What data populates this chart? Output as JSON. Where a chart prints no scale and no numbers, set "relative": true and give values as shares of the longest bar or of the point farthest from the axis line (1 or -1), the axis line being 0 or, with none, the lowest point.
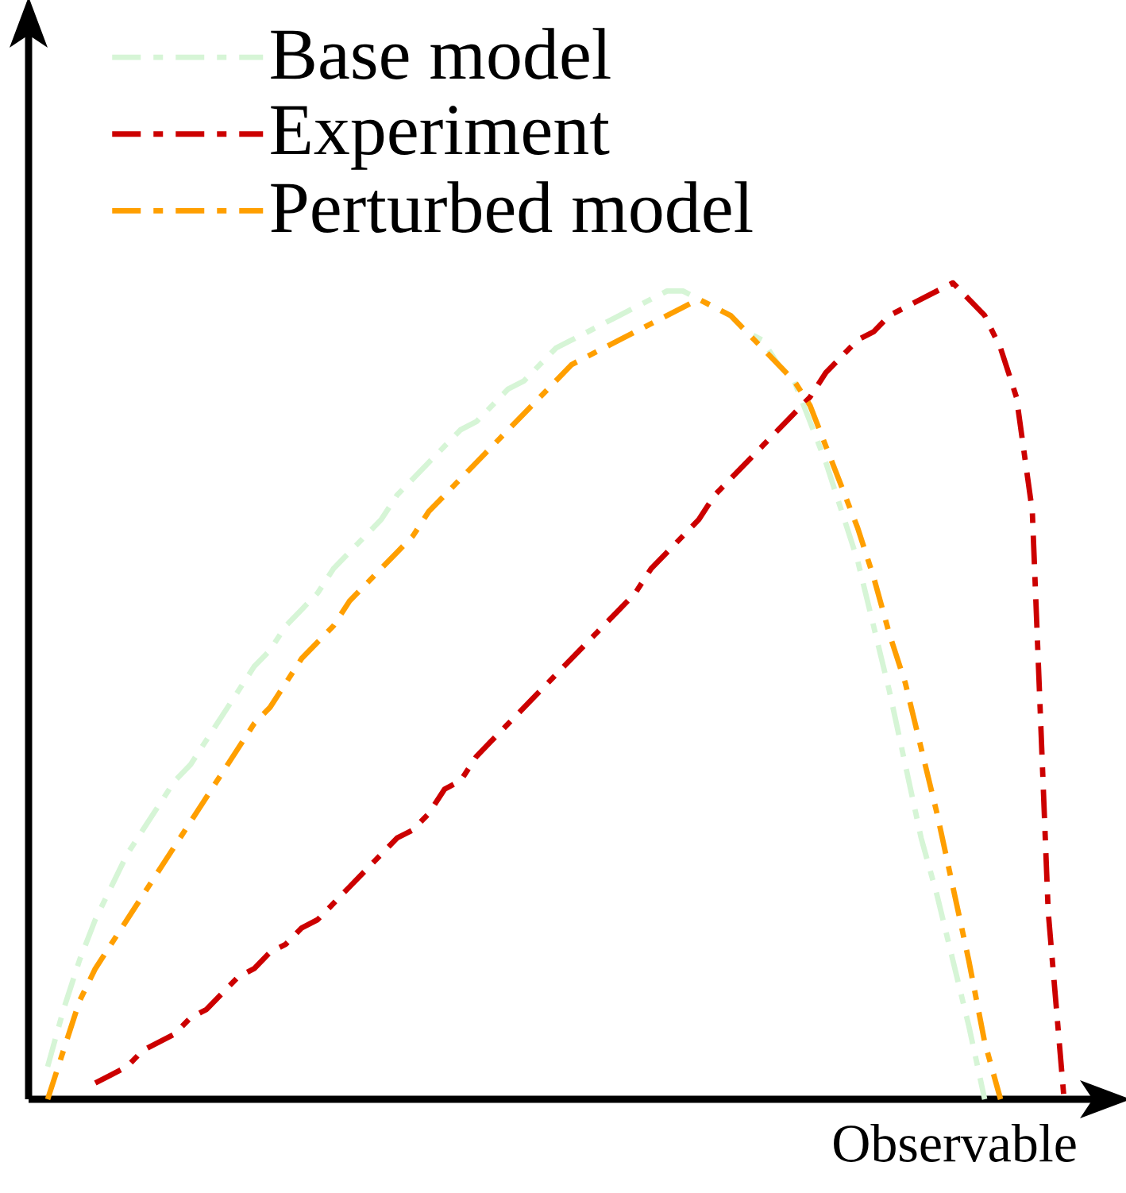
{
  "chart_data": {
    "type": "line",
    "relative": true,
    "xlabel": "Observable",
    "legend": "top left",
    "line_style": "dashdot",
    "marker": "none",
    "categories": [
      null,
      null,
      null,
      null,
      null,
      null,
      null,
      null,
      null,
      null,
      null,
      null,
      null,
      null,
      null,
      null,
      null,
      null,
      null,
      null,
      null,
      null,
      null,
      null,
      null,
      null,
      null,
      null,
      null,
      null,
      null,
      null,
      null,
      null,
      null,
      null,
      null,
      null,
      null,
      null,
      null,
      null,
      null,
      null,
      null,
      null,
      null,
      null,
      null,
      null,
      null,
      null,
      null,
      null,
      null,
      null,
      null,
      null,
      null,
      null,
      null,
      null,
      null,
      null,
      null,
      null,
      null
    ],
    "series": [
      {
        "name": "Base model",
        "color": "#d6f5d6",
        "values": [
          null,
          0.04,
          0.11,
          0.17,
          0.22,
          0.26,
          0.3,
          0.33,
          0.36,
          0.39,
          0.41,
          0.44,
          0.47,
          0.5,
          0.53,
          0.55,
          0.58,
          0.6,
          0.62,
          0.65,
          0.67,
          0.69,
          0.71,
          0.74,
          0.76,
          0.78,
          0.8,
          0.82,
          0.83,
          0.85,
          0.87,
          0.88,
          0.9,
          0.92,
          0.93,
          0.94,
          0.95,
          0.96,
          0.97,
          0.98,
          0.99,
          0.99,
          0.98,
          0.97,
          0.96,
          0.94,
          0.93,
          0.9,
          0.88,
          0.83,
          0.78,
          0.72,
          0.66,
          0.58,
          0.5,
          0.41,
          0.32,
          0.25,
          0.17,
          0.09,
          0,
          null,
          null,
          null,
          null,
          null,
          null
        ]
      },
      {
        "name": "Experiment",
        "color": "#cc0000",
        "values": [
          null,
          null,
          null,
          null,
          0.02,
          0.03,
          0.04,
          0.06,
          0.07,
          0.08,
          0.1,
          0.11,
          0.13,
          0.15,
          0.16,
          0.18,
          0.19,
          0.21,
          0.22,
          0.24,
          0.26,
          0.28,
          0.3,
          0.32,
          0.33,
          0.35,
          0.38,
          0.39,
          0.42,
          0.44,
          0.46,
          0.48,
          0.5,
          0.52,
          0.54,
          0.56,
          0.58,
          0.6,
          0.62,
          0.65,
          0.67,
          0.69,
          0.71,
          0.74,
          0.76,
          0.78,
          0.8,
          0.82,
          0.84,
          0.86,
          0.89,
          0.91,
          0.93,
          0.94,
          0.96,
          0.97,
          0.98,
          0.99,
          1.0,
          0.98,
          0.96,
          0.92,
          0.86,
          0.72,
          0.23,
          0,
          null
        ]
      },
      {
        "name": "Perturbed model",
        "color": "#ff9f00",
        "values": [
          null,
          0,
          0.06,
          0.12,
          0.16,
          0.19,
          0.22,
          0.25,
          0.28,
          0.31,
          0.34,
          0.37,
          0.4,
          0.43,
          0.46,
          0.48,
          0.51,
          0.54,
          0.56,
          0.58,
          0.61,
          0.63,
          0.65,
          0.67,
          0.69,
          0.72,
          0.74,
          0.76,
          0.78,
          0.8,
          0.82,
          0.84,
          0.86,
          0.88,
          0.9,
          0.91,
          0.92,
          0.93,
          0.94,
          0.95,
          0.96,
          0.97,
          0.98,
          0.97,
          0.96,
          0.94,
          0.92,
          0.9,
          0.88,
          0.85,
          0.8,
          0.75,
          0.7,
          0.64,
          0.57,
          0.51,
          0.43,
          0.35,
          0.26,
          0.17,
          0.07,
          0,
          null,
          null,
          null,
          null,
          null
        ]
      }
    ]
  }
}
